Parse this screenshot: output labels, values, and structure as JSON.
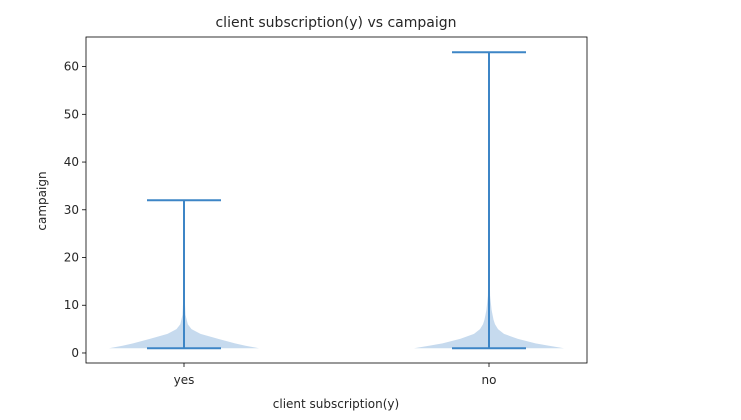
{
  "chart_data": {
    "type": "violin",
    "title": "client subscription(y) vs campaign",
    "xlabel": "client subscription(y)",
    "ylabel": "campaign",
    "categories": [
      "yes",
      "no"
    ],
    "ylim": [
      -2.1,
      66.2
    ],
    "yticks": [
      0,
      10,
      20,
      30,
      40,
      50,
      60
    ],
    "grid": false,
    "series": [
      {
        "category": "yes",
        "min": 1,
        "max": 32,
        "density": [
          [
            1,
            1.0
          ],
          [
            1.5,
            0.82
          ],
          [
            2,
            0.68
          ],
          [
            3,
            0.45
          ],
          [
            4,
            0.22
          ],
          [
            5,
            0.1
          ],
          [
            6,
            0.05
          ],
          [
            8,
            0.02
          ],
          [
            12,
            0.008
          ],
          [
            20,
            0.004
          ],
          [
            32,
            0.0
          ]
        ]
      },
      {
        "category": "no",
        "min": 1,
        "max": 63,
        "density": [
          [
            1,
            1.0
          ],
          [
            1.5,
            0.8
          ],
          [
            2,
            0.62
          ],
          [
            3,
            0.38
          ],
          [
            4,
            0.2
          ],
          [
            5,
            0.12
          ],
          [
            6,
            0.08
          ],
          [
            7,
            0.06
          ],
          [
            9,
            0.035
          ],
          [
            12,
            0.015
          ],
          [
            20,
            0.006
          ],
          [
            40,
            0.003
          ],
          [
            63,
            0.0
          ]
        ]
      }
    ],
    "colors": {
      "line": "#3d85c6",
      "body": "#b3cde8",
      "axis": "#000000"
    }
  }
}
